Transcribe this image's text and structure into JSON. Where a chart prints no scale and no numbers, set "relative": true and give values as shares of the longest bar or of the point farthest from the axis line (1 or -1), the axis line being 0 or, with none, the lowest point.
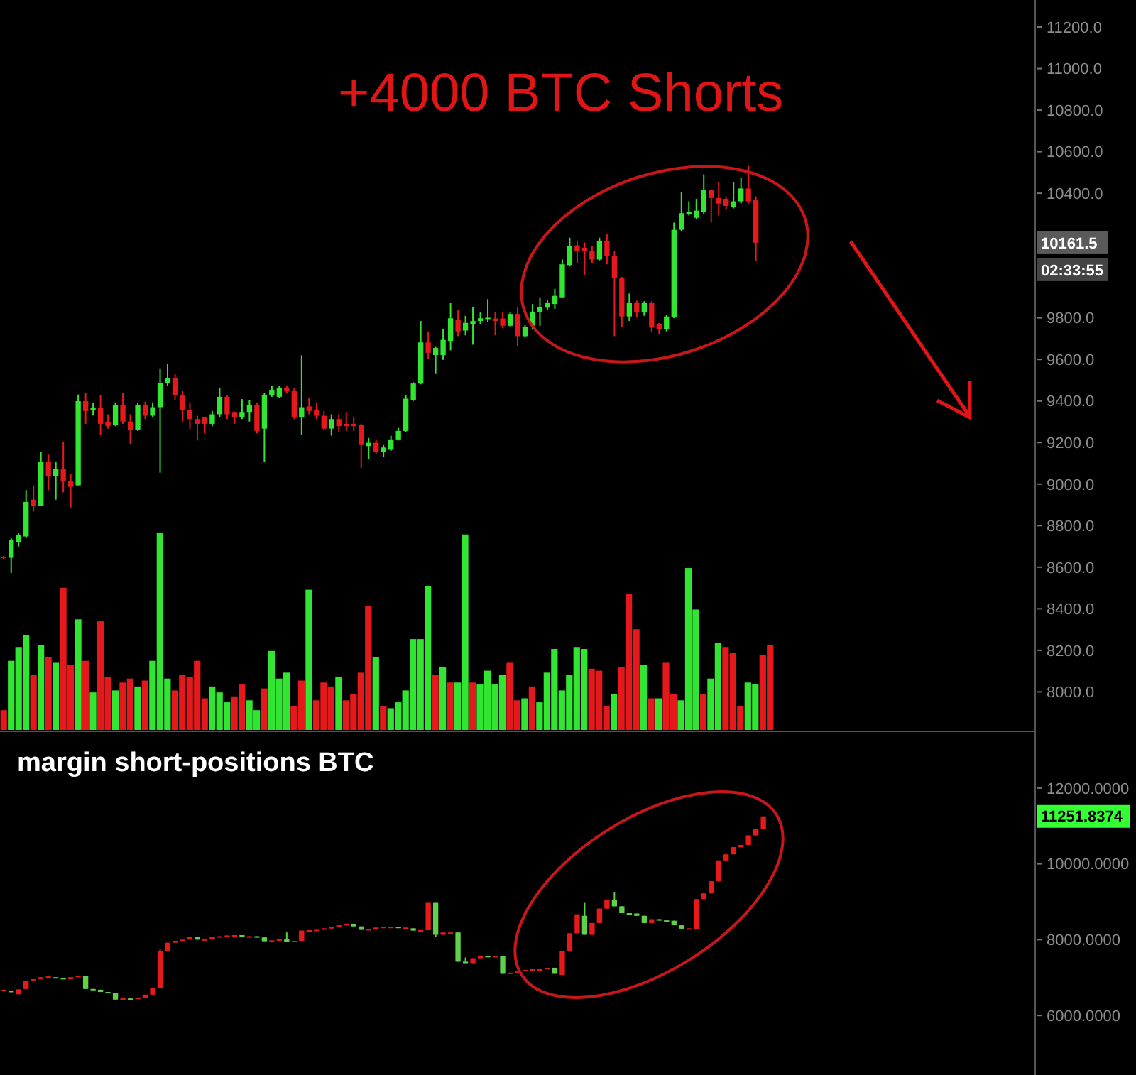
{
  "chart_data": [
    {
      "type": "candlestick",
      "ylim": [
        7810,
        11330
      ],
      "yticks": [
        {
          "value": 8000,
          "label": "8000.0"
        },
        {
          "value": 8200,
          "label": "8200.0"
        },
        {
          "value": 8400,
          "label": "8400.0"
        },
        {
          "value": 8600,
          "label": "8600.0"
        },
        {
          "value": 8800,
          "label": "8800.0"
        },
        {
          "value": 9000,
          "label": "9000.0"
        },
        {
          "value": 9200,
          "label": "9200.0"
        },
        {
          "value": 9400,
          "label": "9400.0"
        },
        {
          "value": 9600,
          "label": "9600.0"
        },
        {
          "value": 9800,
          "label": "9800.0"
        },
        {
          "value": 10400,
          "label": "10400.0"
        },
        {
          "value": 10600,
          "label": "10600.0"
        },
        {
          "value": 10800,
          "label": "10800.0"
        },
        {
          "value": 11000,
          "label": "11000.0"
        },
        {
          "value": 11200,
          "label": "11200.0"
        }
      ],
      "categories": [
        null,
        null,
        null,
        null,
        null,
        null,
        null,
        null,
        null,
        null,
        null,
        null,
        null,
        null,
        null,
        null,
        null,
        null,
        null,
        null,
        null,
        null,
        null,
        null,
        null,
        null,
        null,
        null,
        null,
        null,
        null,
        null,
        null,
        null,
        null,
        null,
        null,
        null,
        null,
        null,
        null,
        null,
        null,
        null,
        null,
        null,
        null,
        null,
        null,
        null,
        null,
        null,
        null,
        null,
        null,
        null,
        null,
        null,
        null,
        null,
        null,
        null,
        null,
        null,
        null,
        null,
        null,
        null,
        null,
        null,
        null,
        null,
        null,
        null,
        null,
        null,
        null,
        null,
        null,
        null,
        null,
        null,
        null,
        null,
        null,
        null,
        null,
        null,
        null,
        null,
        null,
        null,
        null,
        null,
        null,
        null,
        null,
        null,
        null,
        null,
        null,
        null,
        null,
        null,
        null,
        null,
        null,
        null,
        null,
        null,
        null,
        null,
        null,
        null,
        null,
        null,
        null,
        null,
        null,
        null,
        null,
        null,
        null,
        null,
        null,
        null,
        null,
        null,
        null,
        null,
        null,
        null,
        null,
        null,
        null,
        null,
        null,
        null,
        null
      ],
      "ohlc": [
        [
          8650,
          8655,
          8640,
          8645
        ],
        [
          8645,
          8743,
          8572,
          8732
        ],
        [
          8720,
          8766,
          8700,
          8754
        ],
        [
          8748,
          8971,
          8743,
          8914
        ],
        [
          8925,
          8994,
          8868,
          8896
        ],
        [
          8896,
          9153,
          8896,
          9108
        ],
        [
          9108,
          9142,
          8971,
          9039
        ],
        [
          9039,
          9108,
          8925,
          9074
        ],
        [
          9074,
          9203,
          8960,
          9016
        ],
        [
          9016,
          9051,
          8887,
          8987
        ],
        [
          8994,
          9431,
          8994,
          9399
        ],
        [
          9399,
          9438,
          9290,
          9352
        ],
        [
          9355,
          9390,
          9330,
          9365
        ],
        [
          9365,
          9427,
          9238,
          9290
        ],
        [
          9301,
          9336,
          9267,
          9279
        ],
        [
          9283,
          9393,
          9279,
          9381
        ],
        [
          9381,
          9438,
          9290,
          9301
        ],
        [
          9301,
          9336,
          9192,
          9260
        ],
        [
          9260,
          9393,
          9256,
          9381
        ],
        [
          9381,
          9397,
          9313,
          9329
        ],
        [
          9329,
          9393,
          9324,
          9370
        ],
        [
          9370,
          9557,
          9055,
          9488
        ],
        [
          9488,
          9579,
          9472,
          9511
        ],
        [
          9511,
          9529,
          9404,
          9427
        ],
        [
          9427,
          9450,
          9301,
          9358
        ],
        [
          9358,
          9393,
          9267,
          9313
        ],
        [
          9313,
          9329,
          9210,
          9290
        ],
        [
          9324,
          9324,
          9244,
          9290
        ],
        [
          9290,
          9352,
          9279,
          9336
        ],
        [
          9336,
          9461,
          9324,
          9420
        ],
        [
          9420,
          9427,
          9313,
          9336
        ],
        [
          9347,
          9347,
          9290,
          9324
        ],
        [
          9324,
          9409,
          9313,
          9347
        ],
        [
          9347,
          9404,
          9301,
          9381
        ],
        [
          9381,
          9393,
          9244,
          9256
        ],
        [
          9267,
          9438,
          9108,
          9427
        ],
        [
          9427,
          9472,
          9420,
          9454
        ],
        [
          9420,
          9472,
          9415,
          9461
        ],
        [
          9461,
          9472,
          9438,
          9450
        ],
        [
          9450,
          9461,
          9313,
          9324
        ],
        [
          9324,
          9620,
          9238,
          9370
        ],
        [
          9374,
          9415,
          9336,
          9352
        ],
        [
          9358,
          9393,
          9313,
          9329
        ],
        [
          9329,
          9352,
          9260,
          9267
        ],
        [
          9267,
          9336,
          9233,
          9313
        ],
        [
          9313,
          9336,
          9251,
          9279
        ],
        [
          9290,
          9347,
          9256,
          9279
        ],
        [
          9290,
          9324,
          9256,
          9279
        ],
        [
          9283,
          9290,
          9078,
          9188
        ],
        [
          9183,
          9222,
          9120,
          9199
        ],
        [
          9199,
          9215,
          9146,
          9153
        ],
        [
          9153,
          9188,
          9130,
          9176
        ],
        [
          9165,
          9233,
          9160,
          9215
        ],
        [
          9215,
          9270,
          9210,
          9256
        ],
        [
          9256,
          9427,
          9251,
          9411
        ],
        [
          9404,
          9490,
          9400,
          9484
        ],
        [
          9484,
          9785,
          9480,
          9682
        ],
        [
          9682,
          9735,
          9603,
          9632
        ],
        [
          9621,
          9660,
          9530,
          9655
        ],
        [
          9621,
          9746,
          9598,
          9694
        ],
        [
          9689,
          9871,
          9644,
          9798
        ],
        [
          9792,
          9837,
          9712,
          9735
        ],
        [
          9739,
          9810,
          9716,
          9776
        ],
        [
          9769,
          9853,
          9671,
          9785
        ],
        [
          9785,
          9826,
          9769,
          9798
        ],
        [
          9794,
          9890,
          9780,
          9801
        ],
        [
          9797,
          9830,
          9716,
          9785
        ],
        [
          9797,
          9830,
          9750,
          9762
        ],
        [
          9762,
          9830,
          9755,
          9819
        ],
        [
          9819,
          9849,
          9666,
          9712
        ],
        [
          9712,
          9765,
          9705,
          9757
        ],
        [
          9762,
          9867,
          9746,
          9830
        ],
        [
          9830,
          9899,
          9762,
          9853
        ],
        [
          9849,
          9887,
          9840,
          9871
        ],
        [
          9867,
          9940,
          9844,
          9906
        ],
        [
          9899,
          10081,
          9895,
          10058
        ],
        [
          10054,
          10186,
          10050,
          10145
        ],
        [
          10149,
          10172,
          10065,
          10122
        ],
        [
          10138,
          10163,
          10008,
          10122
        ],
        [
          10122,
          10145,
          10065,
          10081
        ],
        [
          10081,
          10186,
          10077,
          10172
        ],
        [
          10172,
          10202,
          10058,
          10099
        ],
        [
          10099,
          10122,
          9712,
          9990
        ],
        [
          9990,
          9997,
          9757,
          9807
        ],
        [
          9807,
          9917,
          9785,
          9871
        ],
        [
          9871,
          9883,
          9803,
          9826
        ],
        [
          9826,
          9880,
          9810,
          9871
        ],
        [
          9871,
          9880,
          9730,
          9753
        ],
        [
          9769,
          9776,
          9723,
          9746
        ],
        [
          9744,
          9813,
          9735,
          9807
        ],
        [
          9803,
          10259,
          9798,
          10224
        ],
        [
          10224,
          10407,
          10215,
          10304
        ],
        [
          10300,
          10361,
          10293,
          10309
        ],
        [
          10282,
          10373,
          10275,
          10316
        ],
        [
          10309,
          10491,
          10300,
          10414
        ],
        [
          10414,
          10418,
          10259,
          10377
        ],
        [
          10377,
          10452,
          10293,
          10350
        ],
        [
          10373,
          10384,
          10320,
          10339
        ],
        [
          10332,
          10452,
          10327,
          10361
        ],
        [
          10361,
          10475,
          10350,
          10423
        ],
        [
          10423,
          10532,
          10350,
          10361
        ],
        [
          10366,
          10384,
          10072,
          10161.5
        ],
        null,
        null,
        null,
        null,
        null,
        null,
        null,
        null,
        null,
        null,
        null,
        null,
        null,
        null,
        null,
        null,
        null,
        null,
        null,
        null,
        null,
        null,
        null,
        null,
        null,
        null,
        null,
        null,
        null,
        null,
        null,
        null,
        null,
        null,
        null,
        null,
        null
      ],
      "colors": [
        "#e5191b",
        "#33e533",
        "#33e533",
        "#33e533",
        "#e5191b",
        "#33e533",
        "#e5191b",
        "#33e533",
        "#e5191b",
        "#e5191b",
        "#33e533",
        "#e5191b",
        "#33e533",
        "#e5191b",
        "#e5191b",
        "#33e533",
        "#e5191b",
        "#e5191b",
        "#33e533",
        "#e5191b",
        "#33e533",
        "#33e533",
        "#33e533",
        "#e5191b",
        "#e5191b",
        "#e5191b",
        "#e5191b",
        "#e5191b",
        "#33e533",
        "#33e533",
        "#e5191b",
        "#e5191b",
        "#33e533",
        "#33e533",
        "#e5191b",
        "#33e533",
        "#33e533",
        "#33e533",
        "#e5191b",
        "#e5191b",
        "#33e533",
        "#e5191b",
        "#e5191b",
        "#e5191b",
        "#33e533",
        "#e5191b",
        "#e5191b",
        "#e5191b",
        "#e5191b",
        "#33e533",
        "#e5191b",
        "#33e533",
        "#33e533",
        "#33e533",
        "#33e533",
        "#33e533",
        "#33e533",
        "#e5191b",
        "#33e533",
        "#33e533",
        "#33e533",
        "#e5191b",
        "#33e533",
        "#33e533",
        "#33e533",
        "#33e533",
        "#e5191b",
        "#e5191b",
        "#33e533",
        "#e5191b",
        "#33e533",
        "#33e533",
        "#33e533",
        "#33e533",
        "#33e533",
        "#33e533",
        "#33e533",
        "#e5191b",
        "#e5191b",
        "#e5191b",
        "#33e533",
        "#e5191b",
        "#e5191b",
        "#e5191b",
        "#33e533",
        "#e5191b",
        "#33e533",
        "#e5191b",
        "#e5191b",
        "#33e533",
        "#33e533",
        "#33e533",
        "#33e533",
        "#33e533",
        "#33e533",
        "#e5191b",
        "#e5191b",
        "#e5191b",
        "#33e533",
        "#33e533",
        "#e5191b",
        "#e5191b",
        null,
        null,
        null,
        null,
        null,
        null,
        null,
        null,
        null,
        null,
        null,
        null,
        null,
        null,
        null,
        null,
        null,
        null,
        null,
        null,
        null,
        null,
        null,
        null,
        null,
        null,
        null,
        null,
        null,
        null,
        null,
        null,
        null,
        null,
        null,
        null,
        null
      ],
      "annotations": [
        "+4000 BTC Shorts",
        "10161.5",
        "02:33:55"
      ]
    },
    {
      "type": "bar",
      "relative": true,
      "categories": [
        null,
        null,
        null,
        null,
        null,
        null,
        null,
        null,
        null,
        null,
        null,
        null,
        null,
        null,
        null,
        null,
        null,
        null,
        null,
        null,
        null,
        null,
        null,
        null,
        null,
        null,
        null,
        null,
        null,
        null,
        null,
        null,
        null,
        null,
        null,
        null,
        null,
        null,
        null,
        null,
        null,
        null,
        null,
        null,
        null,
        null,
        null,
        null,
        null,
        null,
        null,
        null,
        null,
        null,
        null,
        null,
        null,
        null,
        null,
        null,
        null,
        null,
        null,
        null,
        null,
        null,
        null,
        null,
        null,
        null,
        null,
        null,
        null,
        null,
        null,
        null,
        null,
        null,
        null,
        null,
        null,
        null,
        null,
        null,
        null,
        null,
        null,
        null,
        null,
        null,
        null,
        null,
        null,
        null,
        null,
        null,
        null,
        null,
        null,
        null,
        null,
        null,
        null,
        null
      ],
      "values": [
        0.1,
        0.35,
        0.42,
        0.48,
        0.28,
        0.43,
        0.37,
        0.34,
        0.72,
        0.33,
        0.56,
        0.35,
        0.19,
        0.55,
        0.27,
        0.2,
        0.24,
        0.26,
        0.22,
        0.25,
        0.35,
        1,
        0.26,
        0.2,
        0.28,
        0.27,
        0.35,
        0.16,
        0.22,
        0.19,
        0.14,
        0.17,
        0.23,
        0.15,
        0.1,
        0.21,
        0.4,
        0.26,
        0.29,
        0.12,
        0.25,
        0.71,
        0.15,
        0.24,
        0.22,
        0.27,
        0.15,
        0.18,
        0.29,
        0.63,
        0.37,
        0.12,
        0.11,
        0.14,
        0.2,
        0.46,
        0.46,
        0.73,
        0.28,
        0.32,
        0.24,
        0.24,
        0.99,
        0.24,
        0.23,
        0.3,
        0.23,
        0.28,
        0.34,
        0.15,
        0.16,
        0.22,
        0.14,
        0.29,
        0.41,
        0.2,
        0.28,
        0.42,
        0.41,
        0.31,
        0.3,
        0.12,
        0.18,
        0.32,
        0.69,
        0.51,
        0.33,
        0.16,
        0.16,
        0.34,
        0.18,
        0.15,
        0.82,
        0.61,
        0.18,
        0.26,
        0.44,
        0.42,
        0.39,
        0.12,
        0.24,
        0.23,
        0.38,
        0.43
      ],
      "colors": [
        "#e5191b",
        "#33e533",
        "#33e533",
        "#33e533",
        "#e5191b",
        "#33e533",
        "#e5191b",
        "#33e533",
        "#e5191b",
        "#e5191b",
        "#33e533",
        "#e5191b",
        "#33e533",
        "#e5191b",
        "#e5191b",
        "#33e533",
        "#e5191b",
        "#e5191b",
        "#33e533",
        "#e5191b",
        "#33e533",
        "#33e533",
        "#33e533",
        "#e5191b",
        "#e5191b",
        "#e5191b",
        "#e5191b",
        "#e5191b",
        "#33e533",
        "#33e533",
        "#33e533",
        "#e5191b",
        "#e5191b",
        "#33e533",
        "#33e533",
        "#e5191b",
        "#33e533",
        "#33e533",
        "#33e533",
        "#e5191b",
        "#e5191b",
        "#33e533",
        "#e5191b",
        "#e5191b",
        "#e5191b",
        "#33e533",
        "#e5191b",
        "#e5191b",
        "#e5191b",
        "#e5191b",
        "#33e533",
        "#e5191b",
        "#33e533",
        "#33e533",
        "#33e533",
        "#33e533",
        "#33e533",
        "#33e533",
        "#e5191b",
        "#33e533",
        "#e5191b",
        "#33e533",
        "#33e533",
        "#e5191b",
        "#33e533",
        "#33e533",
        "#33e533",
        "#33e533",
        "#e5191b",
        "#e5191b",
        "#33e533",
        "#e5191b",
        "#33e533",
        "#33e533",
        "#33e533",
        "#33e533",
        "#33e533",
        "#33e533",
        "#33e533",
        "#e5191b",
        "#e5191b",
        "#e5191b",
        "#33e533",
        "#e5191b",
        "#e5191b",
        "#e5191b",
        "#33e533",
        "#e5191b",
        "#33e533",
        "#e5191b",
        "#e5191b",
        "#33e533",
        "#33e533",
        "#33e533",
        "#e5191b",
        "#33e533",
        "#33e533",
        "#e5191b",
        "#e5191b",
        "#e5191b",
        "#33e533",
        "#33e533",
        "#e5191b",
        "#e5191b"
      ]
    },
    {
      "type": "candlestick",
      "title": "margin short-positions BTC",
      "ylim": [
        4430,
        13420
      ],
      "yticks": [
        {
          "value": 6000,
          "label": "6000.0000"
        },
        {
          "value": 8000,
          "label": "8000.0000"
        },
        {
          "value": 10000,
          "label": "10000.0000"
        },
        {
          "value": 12000,
          "label": "12000.0000"
        }
      ],
      "categories": [
        null,
        null,
        null,
        null,
        null,
        null,
        null,
        null,
        null,
        null,
        null,
        null,
        null,
        null,
        null,
        null,
        null,
        null,
        null,
        null,
        null,
        null,
        null,
        null,
        null,
        null,
        null,
        null,
        null,
        null,
        null,
        null,
        null,
        null,
        null,
        null,
        null,
        null,
        null,
        null,
        null,
        null,
        null,
        null,
        null,
        null,
        null,
        null,
        null,
        null,
        null,
        null,
        null,
        null,
        null,
        null,
        null,
        null,
        null,
        null,
        null,
        null,
        null,
        null,
        null,
        null,
        null,
        null,
        null,
        null,
        null,
        null,
        null,
        null,
        null,
        null,
        null,
        null,
        null,
        null,
        null,
        null,
        null,
        null,
        null,
        null,
        null,
        null,
        null,
        null,
        null,
        null,
        null,
        null,
        null,
        null,
        null,
        null,
        null,
        null,
        null,
        null,
        null,
        null,
        null,
        null,
        null,
        null,
        null,
        null,
        null,
        null,
        null,
        null,
        null,
        null,
        null,
        null,
        null,
        null,
        null,
        null,
        null,
        null,
        null,
        null,
        null,
        null,
        null,
        null,
        null,
        null,
        null,
        null,
        null,
        null,
        null,
        null,
        null
      ],
      "ohlc": [
        [
          6660,
          6680,
          6660,
          6680
        ],
        [
          6650,
          6650,
          6640,
          6640
        ],
        [
          6560,
          6690,
          6560,
          6690
        ],
        [
          6700,
          6920,
          6700,
          6920
        ],
        [
          6930,
          6960,
          6930,
          6960
        ],
        [
          6960,
          7010,
          6960,
          7010
        ],
        [
          7010,
          7030,
          7010,
          7030
        ],
        [
          7010,
          7010,
          7000,
          7000
        ],
        [
          6990,
          6990,
          6960,
          6960
        ],
        [
          6960,
          7010,
          6960,
          7010
        ],
        [
          7010,
          7050,
          7010,
          7050
        ],
        [
          7050,
          7050,
          6700,
          6700
        ],
        [
          6700,
          6700,
          6680,
          6680
        ],
        [
          6680,
          6680,
          6620,
          6620
        ],
        [
          6620,
          6620,
          6600,
          6600
        ],
        [
          6600,
          6600,
          6420,
          6420
        ],
        [
          6420,
          6450,
          6420,
          6450
        ],
        [
          6450,
          6450,
          6440,
          6440
        ],
        [
          6440,
          6470,
          6440,
          6470
        ],
        [
          6470,
          6550,
          6470,
          6550
        ],
        [
          6550,
          6720,
          6550,
          6720
        ],
        [
          6720,
          7760,
          6720,
          7700
        ],
        [
          7700,
          7920,
          7700,
          7920
        ],
        [
          7920,
          7970,
          7920,
          7970
        ],
        [
          7970,
          8000,
          7970,
          8000
        ],
        [
          8000,
          8070,
          8000,
          8070
        ],
        [
          8070,
          8070,
          8000,
          8000
        ],
        [
          8000,
          8010,
          8000,
          8010
        ],
        [
          8010,
          8070,
          8010,
          8070
        ],
        [
          8070,
          8090,
          8070,
          8090
        ],
        [
          8090,
          8110,
          8090,
          8110
        ],
        [
          8110,
          8120,
          8110,
          8120
        ],
        [
          8120,
          8120,
          8070,
          8070
        ],
        [
          8070,
          8090,
          8070,
          8090
        ],
        [
          8090,
          8090,
          8060,
          8060
        ],
        [
          8060,
          8060,
          7960,
          7960
        ],
        [
          7960,
          7980,
          7960,
          7980
        ],
        [
          7980,
          8010,
          7980,
          8010
        ],
        [
          8010,
          8190,
          7950,
          7950
        ],
        [
          7950,
          7970,
          7950,
          7970
        ],
        [
          7970,
          8240,
          7970,
          8240
        ],
        [
          8240,
          8250,
          8240,
          8250
        ],
        [
          8250,
          8260,
          8250,
          8260
        ],
        [
          8260,
          8300,
          8260,
          8300
        ],
        [
          8300,
          8330,
          8300,
          8330
        ],
        [
          8330,
          8380,
          8330,
          8380
        ],
        [
          8380,
          8420,
          8380,
          8420
        ],
        [
          8420,
          8420,
          8350,
          8350
        ],
        [
          8350,
          8350,
          8260,
          8260
        ],
        [
          8260,
          8280,
          8260,
          8280
        ],
        [
          8280,
          8320,
          8280,
          8320
        ],
        [
          8320,
          8340,
          8320,
          8340
        ],
        [
          8340,
          8340,
          8340,
          8340
        ],
        [
          8340,
          8340,
          8310,
          8310
        ],
        [
          8310,
          8320,
          8310,
          8320
        ],
        [
          8300,
          8300,
          8240,
          8240
        ],
        [
          8240,
          8250,
          8240,
          8250
        ],
        [
          8250,
          8970,
          8250,
          8970
        ],
        [
          8970,
          8970,
          8080,
          8130
        ],
        [
          8130,
          8190,
          8130,
          8190
        ],
        [
          8190,
          8190,
          8190,
          8190
        ],
        [
          8190,
          8190,
          7420,
          7420
        ],
        [
          7420,
          7530,
          7380,
          7380
        ],
        [
          7380,
          7510,
          7380,
          7510
        ],
        [
          7510,
          7570,
          7510,
          7570
        ],
        [
          7570,
          7570,
          7550,
          7550
        ],
        [
          7550,
          7570,
          7550,
          7570
        ],
        [
          7570,
          7570,
          7100,
          7100
        ],
        [
          7100,
          7130,
          7100,
          7130
        ],
        [
          7130,
          7170,
          7130,
          7170
        ],
        [
          7170,
          7200,
          7170,
          7200
        ],
        [
          7200,
          7220,
          7200,
          7220
        ],
        [
          7220,
          7220,
          7220,
          7220
        ],
        [
          7220,
          7260,
          7220,
          7260
        ],
        [
          7260,
          7260,
          7100,
          7100
        ],
        [
          7070,
          7700,
          7070,
          7700
        ],
        [
          7700,
          8170,
          7700,
          8170
        ],
        [
          8170,
          8670,
          8170,
          8670
        ],
        [
          8630,
          8970,
          8130,
          8130
        ],
        [
          8130,
          8440,
          8130,
          8440
        ],
        [
          8440,
          8820,
          8440,
          8820
        ],
        [
          8820,
          9040,
          8820,
          9040
        ],
        [
          9040,
          9260,
          8880,
          8880
        ],
        [
          8880,
          8880,
          8700,
          8700
        ],
        [
          8700,
          8700,
          8690,
          8690
        ],
        [
          8690,
          8690,
          8630,
          8630
        ],
        [
          8630,
          8630,
          8440,
          8440
        ],
        [
          8440,
          8540,
          8440,
          8540
        ],
        [
          8540,
          8540,
          8510,
          8510
        ],
        [
          8510,
          8510,
          8500,
          8500
        ],
        [
          8500,
          8500,
          8380,
          8380
        ],
        [
          8380,
          8380,
          8290,
          8290
        ],
        [
          8290,
          8300,
          8290,
          8300
        ],
        [
          8280,
          9070,
          8280,
          9070
        ],
        [
          9070,
          9220,
          9070,
          9220
        ],
        [
          9220,
          9540,
          9220,
          9540
        ],
        [
          9540,
          10090,
          9540,
          10090
        ],
        [
          10090,
          10250,
          10090,
          10250
        ],
        [
          10250,
          10440,
          10250,
          10440
        ],
        [
          10440,
          10500,
          10440,
          10500
        ],
        [
          10500,
          10750,
          10500,
          10750
        ],
        [
          10750,
          10910,
          10750,
          10910
        ],
        [
          10910,
          11251.8374,
          10910,
          11251.8374
        ],
        null,
        null,
        null,
        null,
        null,
        null,
        null,
        null,
        null,
        null,
        null,
        null,
        null,
        null,
        null,
        null,
        null,
        null,
        null,
        null,
        null,
        null,
        null,
        null,
        null,
        null,
        null,
        null,
        null,
        null,
        null,
        null,
        null,
        null,
        null,
        null
      ],
      "colors": [
        "#e8191b",
        "#5fd14a",
        "#e8191b",
        "#e8191b",
        "#e8191b",
        "#e8191b",
        "#e8191b",
        "#5fd14a",
        "#5fd14a",
        "#e8191b",
        "#e8191b",
        "#5fd14a",
        "#5fd14a",
        "#5fd14a",
        "#5fd14a",
        "#5fd14a",
        "#e8191b",
        "#5fd14a",
        "#e8191b",
        "#e8191b",
        "#e8191b",
        "#e8191b",
        "#e8191b",
        "#e8191b",
        "#e8191b",
        "#e8191b",
        "#5fd14a",
        "#e8191b",
        "#e8191b",
        "#e8191b",
        "#e8191b",
        "#e8191b",
        "#5fd14a",
        "#e8191b",
        "#5fd14a",
        "#5fd14a",
        "#e8191b",
        "#e8191b",
        "#5fd14a",
        "#e8191b",
        "#e8191b",
        "#e8191b",
        "#e8191b",
        "#e8191b",
        "#e8191b",
        "#e8191b",
        "#e8191b",
        "#5fd14a",
        "#5fd14a",
        "#e8191b",
        "#e8191b",
        "#e8191b",
        "#e8191b",
        "#5fd14a",
        "#e8191b",
        "#5fd14a",
        "#e8191b",
        "#e8191b",
        "#5fd14a",
        "#e8191b",
        "#e8191b",
        "#5fd14a",
        "#5fd14a",
        "#e8191b",
        "#e8191b",
        "#5fd14a",
        "#e8191b",
        "#5fd14a",
        "#e8191b",
        "#e8191b",
        "#e8191b",
        "#e8191b",
        "#e8191b",
        "#e8191b",
        "#5fd14a",
        "#e8191b",
        "#e8191b",
        "#e8191b",
        "#5fd14a",
        "#e8191b",
        "#e8191b",
        "#e8191b",
        "#5fd14a",
        "#5fd14a",
        "#5fd14a",
        "#5fd14a",
        "#5fd14a",
        "#e8191b",
        "#5fd14a",
        "#5fd14a",
        "#5fd14a",
        "#5fd14a",
        "#e8191b",
        "#e8191b",
        "#e8191b",
        "#e8191b",
        "#e8191b",
        "#e8191b",
        "#e8191b",
        "#e8191b",
        "#e8191b",
        "#e8191b",
        "#e8191b",
        null,
        null,
        null,
        null,
        null,
        null,
        null,
        null,
        null,
        null,
        null,
        null,
        null,
        null,
        null,
        null,
        null,
        null,
        null,
        null,
        null,
        null,
        null,
        null,
        null,
        null,
        null,
        null,
        null,
        null,
        null,
        null,
        null,
        null,
        null,
        null
      ],
      "annotations": [
        "11251.8374"
      ]
    }
  ]
}
